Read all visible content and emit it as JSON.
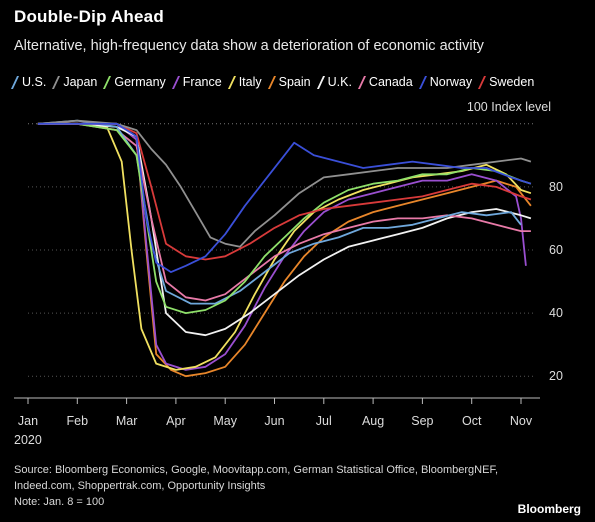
{
  "chart_data": {
    "type": "line",
    "title": "Double-Dip Ahead",
    "subtitle": "Alternative, high-frequency data show a deterioration of economic activity",
    "unit_label": "100 Index level",
    "x_ticks": [
      "Jan",
      "Feb",
      "Mar",
      "Apr",
      "May",
      "Jun",
      "Jul",
      "Aug",
      "Sep",
      "Oct",
      "Nov"
    ],
    "x_year_label": "2020",
    "y_ticks": [
      20,
      40,
      60,
      80
    ],
    "ylim": [
      15,
      105
    ],
    "x_axis_months": "month index, 0 = Jan 1, 2020",
    "legend_position": "top",
    "series": [
      {
        "name": "U.S.",
        "color": "#6fa8dc",
        "points": [
          [
            0.2,
            100
          ],
          [
            1.0,
            101
          ],
          [
            1.8,
            99
          ],
          [
            2.2,
            90
          ],
          [
            2.5,
            62
          ],
          [
            2.8,
            47
          ],
          [
            3.3,
            43
          ],
          [
            3.8,
            43
          ],
          [
            4.3,
            47
          ],
          [
            4.8,
            53
          ],
          [
            5.3,
            59
          ],
          [
            5.8,
            62
          ],
          [
            6.3,
            64
          ],
          [
            6.8,
            67
          ],
          [
            7.3,
            67
          ],
          [
            7.8,
            68
          ],
          [
            8.3,
            70
          ],
          [
            8.8,
            72
          ],
          [
            9.3,
            71
          ],
          [
            9.8,
            72
          ],
          [
            10.0,
            68
          ]
        ]
      },
      {
        "name": "Japan",
        "color": "#909090",
        "points": [
          [
            0.2,
            100
          ],
          [
            1.0,
            101
          ],
          [
            1.8,
            100
          ],
          [
            2.2,
            98
          ],
          [
            2.5,
            92
          ],
          [
            2.8,
            87
          ],
          [
            3.1,
            80
          ],
          [
            3.4,
            72
          ],
          [
            3.7,
            64
          ],
          [
            4.0,
            62
          ],
          [
            4.3,
            61
          ],
          [
            4.6,
            66
          ],
          [
            5.0,
            71
          ],
          [
            5.5,
            78
          ],
          [
            6.0,
            83
          ],
          [
            6.5,
            84
          ],
          [
            7.0,
            85
          ],
          [
            7.5,
            86
          ],
          [
            8.0,
            86
          ],
          [
            8.5,
            86
          ],
          [
            9.0,
            87
          ],
          [
            9.5,
            88
          ],
          [
            10.0,
            89
          ],
          [
            10.2,
            88
          ]
        ]
      },
      {
        "name": "Germany",
        "color": "#8fe06a",
        "points": [
          [
            0.2,
            100
          ],
          [
            1.0,
            100
          ],
          [
            1.8,
            98
          ],
          [
            2.2,
            90
          ],
          [
            2.4,
            70
          ],
          [
            2.6,
            50
          ],
          [
            2.8,
            42
          ],
          [
            3.2,
            40
          ],
          [
            3.6,
            41
          ],
          [
            4.0,
            44
          ],
          [
            4.4,
            50
          ],
          [
            4.8,
            58
          ],
          [
            5.2,
            64
          ],
          [
            5.6,
            70
          ],
          [
            6.0,
            75
          ],
          [
            6.5,
            79
          ],
          [
            7.0,
            81
          ],
          [
            7.5,
            82
          ],
          [
            8.0,
            84
          ],
          [
            8.5,
            84
          ],
          [
            9.0,
            86
          ],
          [
            9.5,
            85
          ],
          [
            10.0,
            82
          ],
          [
            10.2,
            81
          ]
        ]
      },
      {
        "name": "France",
        "color": "#9a4fd0",
        "points": [
          [
            0.2,
            100
          ],
          [
            1.0,
            100
          ],
          [
            1.8,
            100
          ],
          [
            2.2,
            95
          ],
          [
            2.4,
            62
          ],
          [
            2.6,
            30
          ],
          [
            2.8,
            24
          ],
          [
            3.2,
            22
          ],
          [
            3.6,
            23
          ],
          [
            4.0,
            27
          ],
          [
            4.4,
            36
          ],
          [
            4.8,
            48
          ],
          [
            5.2,
            58
          ],
          [
            5.6,
            66
          ],
          [
            6.0,
            72
          ],
          [
            6.5,
            76
          ],
          [
            7.0,
            78
          ],
          [
            7.5,
            80
          ],
          [
            8.0,
            82
          ],
          [
            8.5,
            82
          ],
          [
            9.0,
            84
          ],
          [
            9.5,
            82
          ],
          [
            9.9,
            77
          ],
          [
            10.0,
            70
          ],
          [
            10.1,
            55
          ]
        ]
      },
      {
        "name": "Italy",
        "color": "#f0e060",
        "points": [
          [
            0.2,
            100
          ],
          [
            1.0,
            100
          ],
          [
            1.6,
            99
          ],
          [
            1.9,
            88
          ],
          [
            2.1,
            60
          ],
          [
            2.3,
            35
          ],
          [
            2.6,
            24
          ],
          [
            3.0,
            22
          ],
          [
            3.4,
            23
          ],
          [
            3.8,
            26
          ],
          [
            4.2,
            34
          ],
          [
            4.6,
            46
          ],
          [
            5.0,
            57
          ],
          [
            5.4,
            66
          ],
          [
            5.8,
            72
          ],
          [
            6.3,
            76
          ],
          [
            6.8,
            79
          ],
          [
            7.3,
            81
          ],
          [
            7.8,
            83
          ],
          [
            8.3,
            84
          ],
          [
            8.8,
            85
          ],
          [
            9.3,
            87
          ],
          [
            9.7,
            84
          ],
          [
            10.0,
            79
          ],
          [
            10.2,
            78
          ]
        ]
      },
      {
        "name": "Spain",
        "color": "#e8862a",
        "points": [
          [
            0.2,
            100
          ],
          [
            1.0,
            100
          ],
          [
            1.8,
            100
          ],
          [
            2.2,
            95
          ],
          [
            2.4,
            60
          ],
          [
            2.6,
            27
          ],
          [
            2.9,
            22
          ],
          [
            3.2,
            20
          ],
          [
            3.6,
            21
          ],
          [
            4.0,
            23
          ],
          [
            4.4,
            30
          ],
          [
            4.8,
            40
          ],
          [
            5.2,
            50
          ],
          [
            5.6,
            58
          ],
          [
            6.0,
            64
          ],
          [
            6.5,
            69
          ],
          [
            7.0,
            72
          ],
          [
            7.5,
            74
          ],
          [
            8.0,
            76
          ],
          [
            8.5,
            78
          ],
          [
            9.0,
            80
          ],
          [
            9.5,
            82
          ],
          [
            9.9,
            80
          ],
          [
            10.2,
            74
          ]
        ]
      },
      {
        "name": "U.K.",
        "color": "#f2f2f2",
        "points": [
          [
            0.2,
            100
          ],
          [
            1.0,
            100
          ],
          [
            1.8,
            99
          ],
          [
            2.2,
            96
          ],
          [
            2.5,
            70
          ],
          [
            2.8,
            40
          ],
          [
            3.2,
            34
          ],
          [
            3.6,
            33
          ],
          [
            4.0,
            35
          ],
          [
            4.5,
            40
          ],
          [
            5.0,
            46
          ],
          [
            5.5,
            52
          ],
          [
            6.0,
            57
          ],
          [
            6.5,
            61
          ],
          [
            7.0,
            63
          ],
          [
            7.5,
            65
          ],
          [
            8.0,
            67
          ],
          [
            8.5,
            70
          ],
          [
            9.0,
            72
          ],
          [
            9.5,
            73
          ],
          [
            10.0,
            71
          ],
          [
            10.2,
            70
          ]
        ]
      },
      {
        "name": "Canada",
        "color": "#e87aa8",
        "points": [
          [
            0.2,
            100
          ],
          [
            1.0,
            100
          ],
          [
            1.8,
            98
          ],
          [
            2.2,
            93
          ],
          [
            2.5,
            70
          ],
          [
            2.8,
            50
          ],
          [
            3.2,
            45
          ],
          [
            3.6,
            44
          ],
          [
            4.0,
            46
          ],
          [
            4.5,
            52
          ],
          [
            5.0,
            58
          ],
          [
            5.5,
            62
          ],
          [
            6.0,
            65
          ],
          [
            6.5,
            67
          ],
          [
            7.0,
            69
          ],
          [
            7.5,
            70
          ],
          [
            8.0,
            70
          ],
          [
            8.5,
            71
          ],
          [
            9.0,
            70
          ],
          [
            9.5,
            68
          ],
          [
            10.0,
            66
          ],
          [
            10.2,
            66
          ]
        ]
      },
      {
        "name": "Norway",
        "color": "#3a4fd8",
        "points": [
          [
            0.2,
            100
          ],
          [
            1.0,
            100
          ],
          [
            1.8,
            100
          ],
          [
            2.2,
            96
          ],
          [
            2.4,
            70
          ],
          [
            2.6,
            56
          ],
          [
            2.9,
            53
          ],
          [
            3.2,
            55
          ],
          [
            3.6,
            58
          ],
          [
            4.0,
            65
          ],
          [
            4.4,
            74
          ],
          [
            4.8,
            82
          ],
          [
            5.2,
            90
          ],
          [
            5.4,
            94
          ],
          [
            5.8,
            90
          ],
          [
            6.3,
            88
          ],
          [
            6.8,
            86
          ],
          [
            7.3,
            87
          ],
          [
            7.8,
            88
          ],
          [
            8.3,
            87
          ],
          [
            8.8,
            86
          ],
          [
            9.3,
            86
          ],
          [
            9.8,
            83
          ],
          [
            10.2,
            81
          ]
        ]
      },
      {
        "name": "Sweden",
        "color": "#d83a3a",
        "points": [
          [
            0.2,
            100
          ],
          [
            1.0,
            100
          ],
          [
            1.8,
            100
          ],
          [
            2.2,
            97
          ],
          [
            2.5,
            80
          ],
          [
            2.8,
            62
          ],
          [
            3.2,
            58
          ],
          [
            3.6,
            57
          ],
          [
            4.0,
            58
          ],
          [
            4.5,
            62
          ],
          [
            5.0,
            67
          ],
          [
            5.5,
            71
          ],
          [
            6.0,
            73
          ],
          [
            6.5,
            74
          ],
          [
            7.0,
            75
          ],
          [
            7.5,
            76
          ],
          [
            8.0,
            77
          ],
          [
            8.5,
            79
          ],
          [
            9.0,
            81
          ],
          [
            9.5,
            80
          ],
          [
            10.0,
            77
          ],
          [
            10.2,
            76
          ]
        ]
      }
    ]
  },
  "source_lines": [
    "Source: Bloomberg Economics, Google, Moovitapp.com, German Statistical Office, BloombergNEF,",
    "Indeed.com, Shoppertrak.com, Opportunity Insights",
    "Note: Jan. 8 = 100"
  ],
  "branding": "Bloomberg"
}
